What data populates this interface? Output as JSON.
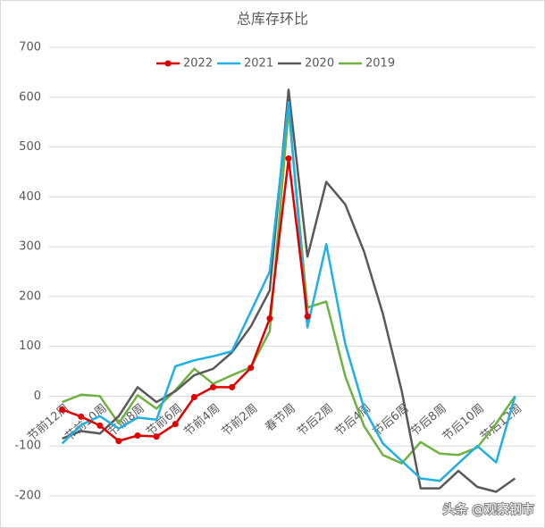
{
  "chart_data": {
    "type": "line",
    "title": "总库存环比",
    "categories": [
      "节前12周",
      null,
      "节前10周",
      null,
      "节前8周",
      null,
      "节前6周",
      null,
      "节前4周",
      null,
      "节前2周",
      null,
      "春节周",
      null,
      "节后2周",
      null,
      "节后4周",
      null,
      "节后6周",
      null,
      "节后8周",
      null,
      "节后10周",
      null,
      "节后12周"
    ],
    "series": [
      {
        "name": "2022",
        "color": "#e00000",
        "marker": "circle",
        "values": [
          -27,
          -41,
          -59,
          -90,
          -79,
          -81,
          -56,
          -2,
          18,
          18,
          57,
          156,
          477,
          160,
          null,
          null,
          null,
          null,
          null,
          null,
          null,
          null,
          null,
          null,
          null
        ]
      },
      {
        "name": "2021",
        "color": "#1fb0e8",
        "values": [
          -95,
          -58,
          -40,
          -65,
          -43,
          -47,
          60,
          72,
          80,
          90,
          170,
          250,
          590,
          138,
          305,
          105,
          -25,
          -95,
          -130,
          -165,
          -170,
          -135,
          -100,
          -133,
          0
        ]
      },
      {
        "name": "2020",
        "color": "#595959",
        "values": [
          -85,
          -70,
          -75,
          -40,
          18,
          -12,
          10,
          42,
          55,
          88,
          140,
          212,
          615,
          280,
          430,
          385,
          290,
          165,
          10,
          -185,
          -185,
          -150,
          -182,
          -192,
          -165
        ]
      },
      {
        "name": "2019",
        "color": "#6fb23f",
        "values": [
          -12,
          3,
          0,
          -55,
          2,
          -25,
          12,
          55,
          25,
          42,
          58,
          130,
          575,
          178,
          190,
          40,
          -60,
          -118,
          -135,
          -92,
          -115,
          -118,
          -103,
          -55,
          0
        ]
      }
    ],
    "ylim": [
      -200,
      700
    ],
    "yticks": [
      -200,
      -100,
      0,
      100,
      200,
      300,
      400,
      500,
      600,
      700
    ],
    "grid": true,
    "legend": "top",
    "watermark": "头条 @观察钢市"
  }
}
